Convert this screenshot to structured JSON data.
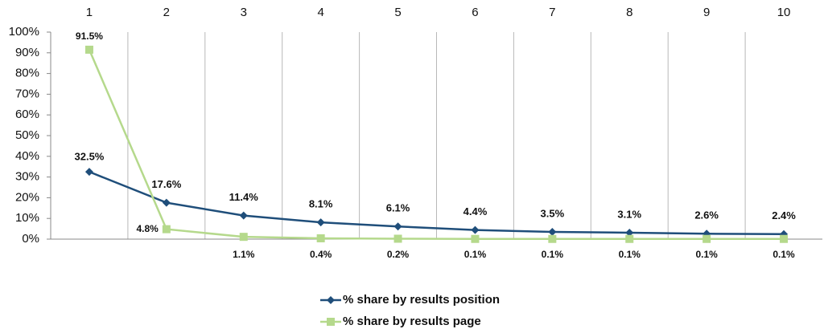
{
  "chart_data": {
    "type": "line",
    "categories": [
      "1",
      "2",
      "3",
      "4",
      "5",
      "6",
      "7",
      "8",
      "9",
      "10"
    ],
    "ylim": [
      0,
      100
    ],
    "yticks": [
      {
        "value": 0,
        "label": "0%"
      },
      {
        "value": 10,
        "label": "10%"
      },
      {
        "value": 20,
        "label": "20%"
      },
      {
        "value": 30,
        "label": "30%"
      },
      {
        "value": 40,
        "label": "40%"
      },
      {
        "value": 50,
        "label": "50%"
      },
      {
        "value": 60,
        "label": "60%"
      },
      {
        "value": 70,
        "label": "70%"
      },
      {
        "value": 80,
        "label": "80%"
      },
      {
        "value": 90,
        "label": "90%"
      },
      {
        "value": 100,
        "label": "100%"
      }
    ],
    "series": [
      {
        "name": "% share by results position",
        "color": "#1f4e7a",
        "marker": "diamond",
        "values": [
          32.5,
          17.6,
          11.4,
          8.1,
          6.1,
          4.4,
          3.5,
          3.1,
          2.6,
          2.4
        ],
        "value_labels": [
          "32.5%",
          "17.6%",
          "11.4%",
          "8.1%",
          "6.1%",
          "4.4%",
          "3.5%",
          "3.1%",
          "2.6%",
          "2.4%"
        ]
      },
      {
        "name": "% share by results page",
        "color": "#b5d98c",
        "marker": "square",
        "values": [
          91.5,
          4.8,
          1.1,
          0.4,
          0.2,
          0.1,
          0.1,
          0.1,
          0.1,
          0.1
        ],
        "value_labels": [
          "91.5%",
          "4.8%",
          "1.1%",
          "0.4%",
          "0.2%",
          "0.1%",
          "0.1%",
          "0.1%",
          "0.1%",
          "0.1%"
        ]
      }
    ]
  }
}
